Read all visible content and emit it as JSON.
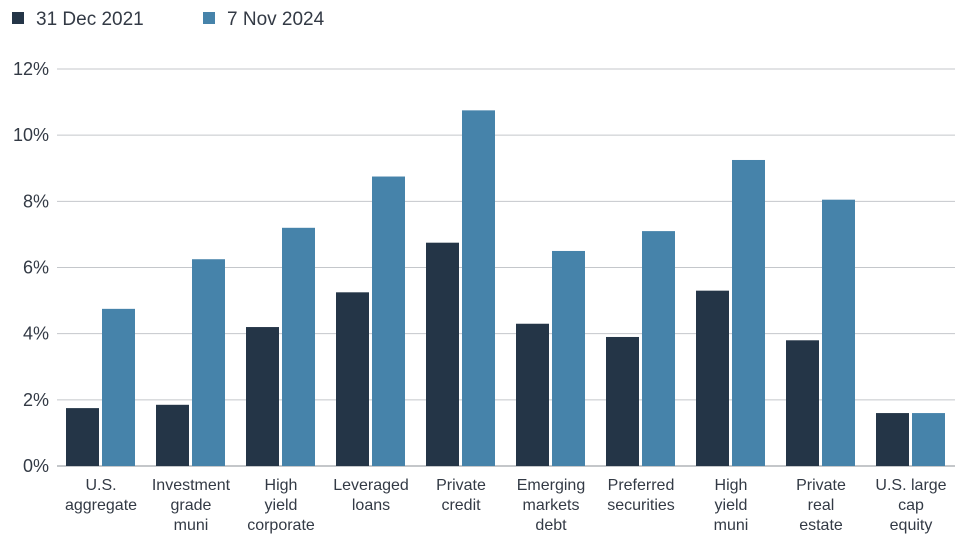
{
  "chart_data": {
    "type": "bar",
    "title": "",
    "xlabel": "",
    "ylabel": "",
    "ylim": [
      0,
      12
    ],
    "yticks": [
      0,
      2,
      4,
      6,
      8,
      10,
      12
    ],
    "ytick_labels": [
      "0%",
      "2%",
      "4%",
      "6%",
      "8%",
      "10%",
      "12%"
    ],
    "grid": "horizontal",
    "legend_position": "top-left",
    "categories": [
      [
        "U.S.",
        "aggregate"
      ],
      [
        "Investment",
        "grade",
        "muni"
      ],
      [
        "High",
        "yield",
        "corporate"
      ],
      [
        "Leveraged",
        "loans"
      ],
      [
        "Private",
        "credit"
      ],
      [
        "Emerging",
        "markets",
        "debt"
      ],
      [
        "Preferred",
        "securities"
      ],
      [
        "High",
        "yield",
        "muni"
      ],
      [
        "Private",
        "real",
        "estate"
      ],
      [
        "U.S. large",
        "cap",
        "equity"
      ]
    ],
    "series": [
      {
        "name": "31 Dec 2021",
        "color": "#243547",
        "values": [
          1.75,
          1.85,
          4.2,
          5.25,
          6.75,
          4.3,
          3.9,
          5.3,
          3.8,
          1.6
        ]
      },
      {
        "name": "7 Nov 2024",
        "color": "#4683aa",
        "values": [
          4.75,
          6.25,
          7.2,
          8.75,
          10.75,
          6.5,
          7.1,
          9.25,
          8.05,
          1.6
        ]
      }
    ]
  }
}
